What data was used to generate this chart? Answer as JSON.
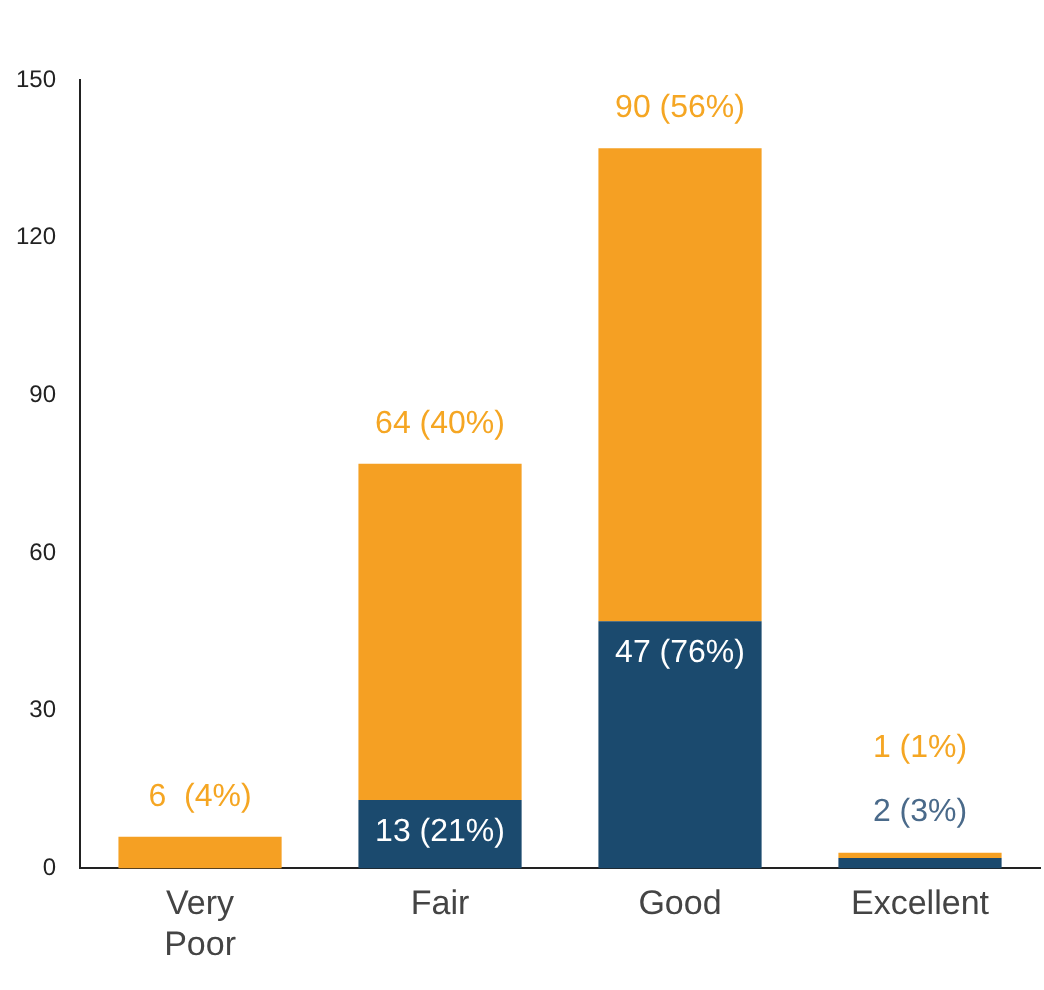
{
  "chart_data": {
    "type": "bar",
    "stacked": true,
    "categories": [
      "Very Poor",
      "Fair",
      "Good",
      "Excellent"
    ],
    "series": [
      {
        "color": "#1b4a6e",
        "values": [
          null,
          13,
          47,
          2
        ],
        "value_labels": [
          null,
          "13 (21%)",
          "47 (76%)",
          "2 (3%)"
        ]
      },
      {
        "color": "#f5a023",
        "values": [
          6,
          64,
          90,
          1
        ],
        "value_labels": [
          "6  (4%)",
          "64 (40%)",
          "90 (56%)",
          "1 (1%)"
        ]
      }
    ],
    "ylim": [
      0,
      150
    ],
    "yticks": [
      0,
      30,
      60,
      90,
      120,
      150
    ],
    "grid": false,
    "legend": false
  }
}
